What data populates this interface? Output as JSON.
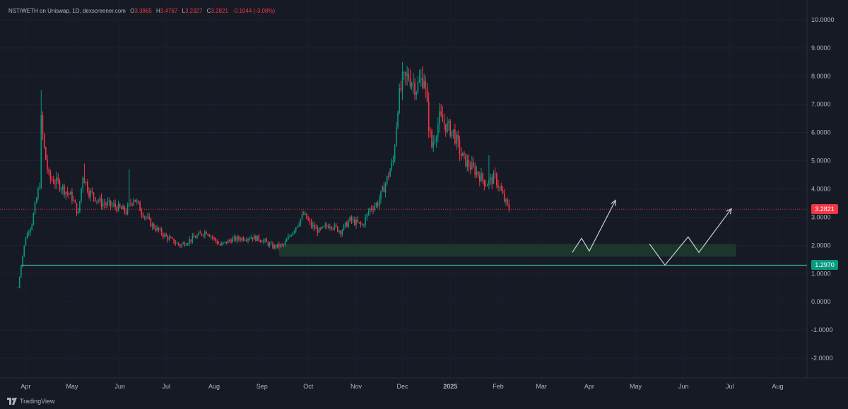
{
  "legend": {
    "symbol": "NST/WETH on Uniswap, 1D, dexscreener.com",
    "o_label": "O",
    "o_value": "3.3865",
    "h_label": "H",
    "h_value": "3.4767",
    "l_label": "L",
    "l_value": "3.2327",
    "c_label": "C",
    "c_value": "3.2821",
    "change": "-0.1044 (-3.08%)"
  },
  "brand": {
    "name": "TradingView",
    "icon": "tradingview-logo-icon"
  },
  "colors": {
    "background": "#161a25",
    "up": "#089981",
    "down": "#f23645",
    "support_line": "#3fb9a8",
    "zone_fill": "#1e3a2c",
    "axis_text": "#b2b5be",
    "projection": "#c8ccd6"
  },
  "chart_data": {
    "type": "candlestick",
    "title": "",
    "y_axis": {
      "ticks": [
        "10.0000",
        "9.0000",
        "8.0000",
        "7.0000",
        "6.0000",
        "5.0000",
        "4.0000",
        "3.0000",
        "2.0000",
        "1.0000",
        "0.0000",
        "-1.0000",
        "-2.0000"
      ],
      "tick_values": [
        10,
        9,
        8,
        7,
        6,
        5,
        4,
        3,
        2,
        1,
        0,
        -1,
        -2
      ],
      "range": [
        -2.7,
        10.5
      ]
    },
    "x_axis": {
      "ticks": [
        "Apr",
        "May",
        "Jun",
        "Jul",
        "Aug",
        "Sep",
        "Oct",
        "Nov",
        "Dec",
        "2025",
        "Feb",
        "Mar",
        "Apr",
        "May",
        "Jun",
        "Jul",
        "Aug"
      ],
      "tick_dates": [
        "2024-04-01",
        "2024-05-01",
        "2024-06-01",
        "2024-07-01",
        "2024-08-01",
        "2024-09-01",
        "2024-10-01",
        "2024-11-01",
        "2024-12-01",
        "2025-01-01",
        "2025-02-01",
        "2025-03-01",
        "2025-04-01",
        "2025-05-01",
        "2025-06-01",
        "2025-07-01",
        "2025-08-01"
      ],
      "bold_ticks": [
        "2025"
      ],
      "range": [
        "2024-03-19",
        "2025-08-20"
      ]
    },
    "last_price": {
      "label": "3.2821",
      "value": 3.2821
    },
    "support_level": {
      "label": "1.2970",
      "value": 1.297,
      "from": "2024-03-29"
    },
    "zone": {
      "y": [
        1.6,
        2.05
      ],
      "from": "2024-09-12",
      "to": "2025-07-05"
    },
    "series_anchors": [
      [
        "2024-03-27",
        0.5
      ],
      [
        "2024-03-29",
        1.3
      ],
      [
        "2024-04-01",
        2.3
      ],
      [
        "2024-04-05",
        2.8
      ],
      [
        "2024-04-10",
        4.2
      ],
      [
        "2024-04-11",
        6.4
      ],
      [
        "2024-04-13",
        5.4
      ],
      [
        "2024-04-16",
        4.4
      ],
      [
        "2024-04-22",
        4.2
      ],
      [
        "2024-05-01",
        3.7
      ],
      [
        "2024-05-05",
        3.1
      ],
      [
        "2024-05-08",
        4.5
      ],
      [
        "2024-05-12",
        3.9
      ],
      [
        "2024-05-20",
        3.5
      ],
      [
        "2024-05-28",
        3.4
      ],
      [
        "2024-06-05",
        3.2
      ],
      [
        "2024-06-10",
        3.7
      ],
      [
        "2024-06-15",
        3.2
      ],
      [
        "2024-06-22",
        2.7
      ],
      [
        "2024-07-01",
        2.3
      ],
      [
        "2024-07-10",
        2.0
      ],
      [
        "2024-07-20",
        2.3
      ],
      [
        "2024-07-27",
        2.5
      ],
      [
        "2024-08-05",
        2.0
      ],
      [
        "2024-08-12",
        2.2
      ],
      [
        "2024-08-25",
        2.3
      ],
      [
        "2024-09-01",
        2.2
      ],
      [
        "2024-09-08",
        1.95
      ],
      [
        "2024-09-15",
        2.0
      ],
      [
        "2024-09-22",
        2.6
      ],
      [
        "2024-09-28",
        3.1
      ],
      [
        "2024-10-03",
        2.7
      ],
      [
        "2024-10-08",
        2.5
      ],
      [
        "2024-10-15",
        2.75
      ],
      [
        "2024-10-22",
        2.5
      ],
      [
        "2024-10-28",
        2.9
      ],
      [
        "2024-11-05",
        2.7
      ],
      [
        "2024-11-10",
        3.3
      ],
      [
        "2024-11-15",
        3.5
      ],
      [
        "2024-11-20",
        4.2
      ],
      [
        "2024-11-25",
        5.0
      ],
      [
        "2024-11-28",
        7.0
      ],
      [
        "2024-12-01",
        7.8
      ],
      [
        "2024-12-05",
        8.0
      ],
      [
        "2024-12-10",
        7.6
      ],
      [
        "2024-12-15",
        8.0
      ],
      [
        "2024-12-18",
        6.3
      ],
      [
        "2024-12-20",
        5.5
      ],
      [
        "2024-12-25",
        6.5
      ],
      [
        "2024-12-30",
        6.2
      ],
      [
        "2025-01-03",
        6.0
      ],
      [
        "2025-01-08",
        5.2
      ],
      [
        "2025-01-12",
        4.9
      ],
      [
        "2025-01-18",
        4.6
      ],
      [
        "2025-01-24",
        4.2
      ],
      [
        "2025-01-30",
        4.4
      ],
      [
        "2025-02-03",
        3.9
      ],
      [
        "2025-02-05",
        3.6
      ],
      [
        "2025-02-08",
        3.3
      ]
    ],
    "spikes": [
      [
        "2024-04-11",
        7.5
      ],
      [
        "2024-05-09",
        4.9
      ],
      [
        "2024-06-07",
        4.7
      ],
      [
        "2024-12-01",
        8.5
      ],
      [
        "2024-12-14",
        8.35
      ],
      [
        "2025-01-26",
        5.2
      ]
    ],
    "projections": [
      {
        "points": [
          [
            "2025-03-21",
            1.75
          ],
          [
            "2025-03-27",
            2.25
          ],
          [
            "2025-04-01",
            1.8
          ],
          [
            "2025-04-18",
            3.6
          ]
        ]
      },
      {
        "points": [
          [
            "2025-05-10",
            2.05
          ],
          [
            "2025-05-20",
            1.3
          ],
          [
            "2025-06-04",
            2.3
          ],
          [
            "2025-06-11",
            1.75
          ],
          [
            "2025-07-02",
            3.3
          ]
        ]
      }
    ]
  }
}
